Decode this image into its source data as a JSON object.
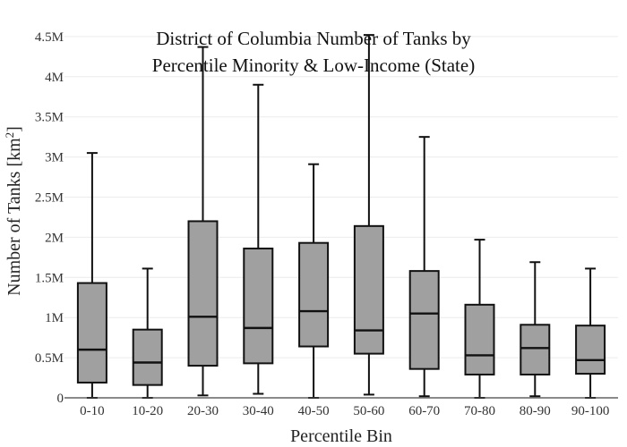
{
  "chart_data": {
    "type": "box",
    "title_lines": [
      "District of Columbia Number of Tanks by",
      "Percentile Minority & Low-Income (State)"
    ],
    "xlabel": "Percentile Bin",
    "ylabel_main": "Number of Tanks  [km",
    "ylabel_sup": "2",
    "ylabel_end": "]",
    "ylim": [
      0,
      4600000
    ],
    "yticks": [
      0,
      500000,
      1000000,
      1500000,
      2000000,
      2500000,
      3000000,
      3500000,
      4000000,
      4500000
    ],
    "ytick_labels": [
      "0",
      "0.5M",
      "1M",
      "1.5M",
      "2M",
      "2.5M",
      "3M",
      "3.5M",
      "4M",
      "4.5M"
    ],
    "grid": true,
    "box_color": "#a0a0a0",
    "line_color": "#111111",
    "categories": [
      "0-10",
      "10-20",
      "20-30",
      "30-40",
      "40-50",
      "50-60",
      "60-70",
      "70-80",
      "80-90",
      "90-100"
    ],
    "boxes": [
      {
        "min": 0,
        "q1": 190000,
        "median": 600000,
        "q3": 1430000,
        "max": 3050000
      },
      {
        "min": 0,
        "q1": 160000,
        "median": 440000,
        "q3": 850000,
        "max": 1610000
      },
      {
        "min": 30000,
        "q1": 400000,
        "median": 1010000,
        "q3": 2200000,
        "max": 4370000
      },
      {
        "min": 50000,
        "q1": 430000,
        "median": 870000,
        "q3": 1860000,
        "max": 3900000
      },
      {
        "min": 0,
        "q1": 640000,
        "median": 1080000,
        "q3": 1930000,
        "max": 2910000
      },
      {
        "min": 40000,
        "q1": 550000,
        "median": 840000,
        "q3": 2140000,
        "max": 4520000
      },
      {
        "min": 20000,
        "q1": 360000,
        "median": 1050000,
        "q3": 1580000,
        "max": 3250000
      },
      {
        "min": 0,
        "q1": 290000,
        "median": 530000,
        "q3": 1160000,
        "max": 1970000
      },
      {
        "min": 20000,
        "q1": 290000,
        "median": 620000,
        "q3": 910000,
        "max": 1690000
      },
      {
        "min": 0,
        "q1": 300000,
        "median": 470000,
        "q3": 900000,
        "max": 1610000
      }
    ]
  }
}
